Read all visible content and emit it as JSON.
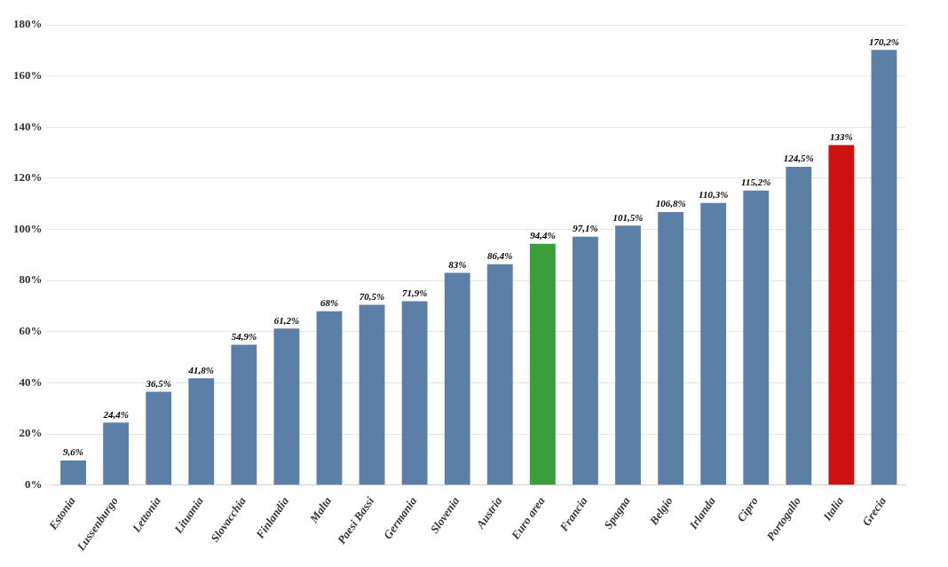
{
  "chart_data": {
    "type": "bar",
    "categories": [
      "Estonia",
      "Lussenburgo",
      "Lettonia",
      "Lituania",
      "Slovacchia",
      "Finlandia",
      "Malta",
      "Paesi Bassi",
      "Germania",
      "Slovenia",
      "Austria",
      "Euro area",
      "Francia",
      "Spagna",
      "Belgio",
      "Irlanda",
      "Cipro",
      "Portogallo",
      "Italia",
      "Grecia"
    ],
    "values": [
      9.6,
      24.4,
      36.5,
      41.8,
      54.9,
      61.2,
      68.0,
      70.5,
      71.9,
      83.0,
      86.4,
      94.4,
      97.1,
      101.5,
      106.8,
      110.3,
      115.2,
      124.5,
      133.0,
      170.2
    ],
    "value_labels": [
      "9,6%",
      "24,4%",
      "36,5%",
      "41,8%",
      "54,9%",
      "61,2%",
      "68%",
      "70,5%",
      "71,9%",
      "83%",
      "86,4%",
      "94,4%",
      "97,1%",
      "101,5%",
      "106,8%",
      "110,3%",
      "115,2%",
      "124,5%",
      "133%",
      "170,2%"
    ],
    "colors": [
      "#5b7fa6",
      "#5b7fa6",
      "#5b7fa6",
      "#5b7fa6",
      "#5b7fa6",
      "#5b7fa6",
      "#5b7fa6",
      "#5b7fa6",
      "#5b7fa6",
      "#5b7fa6",
      "#5b7fa6",
      "#3a9e3a",
      "#5b7fa6",
      "#5b7fa6",
      "#5b7fa6",
      "#5b7fa6",
      "#5b7fa6",
      "#5b7fa6",
      "#cc1111",
      "#5b7fa6"
    ],
    "ylim": [
      0,
      180
    ],
    "yticks": [
      {
        "value": 0,
        "label": "0%"
      },
      {
        "value": 20,
        "label": "20%"
      },
      {
        "value": 40,
        "label": "40%"
      },
      {
        "value": 60,
        "label": "60%"
      },
      {
        "value": 80,
        "label": "80%"
      },
      {
        "value": 100,
        "label": "100%"
      },
      {
        "value": 120,
        "label": "120%"
      },
      {
        "value": 140,
        "label": "140%"
      },
      {
        "value": 160,
        "label": "160%"
      },
      {
        "value": 180,
        "label": "180%"
      }
    ],
    "grid": true,
    "data_labels": true
  }
}
